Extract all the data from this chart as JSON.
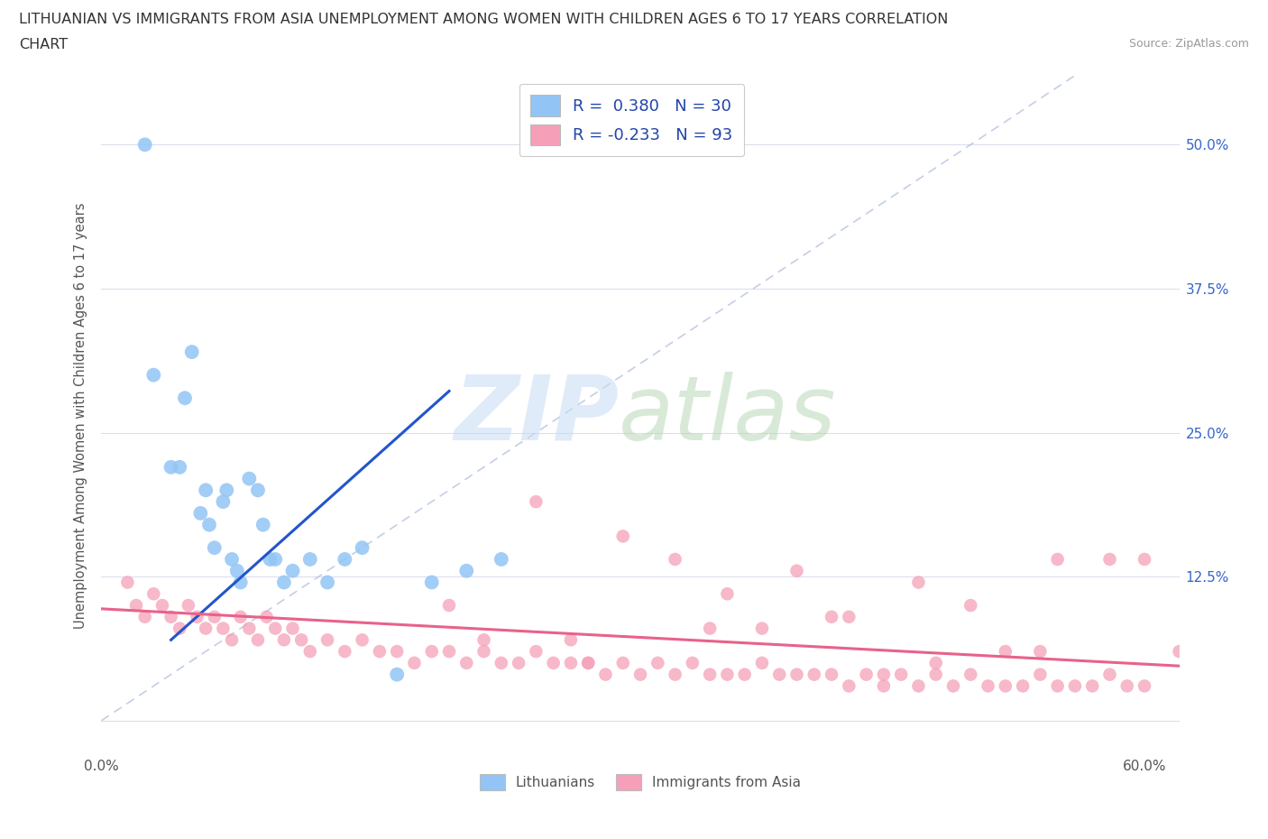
{
  "title_line1": "LITHUANIAN VS IMMIGRANTS FROM ASIA UNEMPLOYMENT AMONG WOMEN WITH CHILDREN AGES 6 TO 17 YEARS CORRELATION",
  "title_line2": "CHART",
  "source": "Source: ZipAtlas.com",
  "ylabel": "Unemployment Among Women with Children Ages 6 to 17 years",
  "xlim": [
    0.0,
    0.62
  ],
  "ylim": [
    -0.03,
    0.56
  ],
  "xtick_pos": [
    0.0,
    0.1,
    0.2,
    0.3,
    0.4,
    0.5,
    0.6
  ],
  "xticklabels": [
    "0.0%",
    "",
    "",
    "",
    "",
    "",
    "60.0%"
  ],
  "ytick_positions": [
    0.0,
    0.125,
    0.25,
    0.375,
    0.5
  ],
  "yticklabels_right": [
    "",
    "12.5%",
    "25.0%",
    "37.5%",
    "50.0%"
  ],
  "R_blue": 0.38,
  "N_blue": 30,
  "R_pink": -0.233,
  "N_pink": 93,
  "blue_color": "#92C5F5",
  "pink_color": "#F5A0B8",
  "blue_line_color": "#2255CC",
  "pink_line_color": "#E8628A",
  "grid_color": "#DDDDEE",
  "blue_x": [
    0.025,
    0.03,
    0.04,
    0.045,
    0.048,
    0.052,
    0.057,
    0.06,
    0.062,
    0.065,
    0.07,
    0.072,
    0.075,
    0.078,
    0.08,
    0.085,
    0.09,
    0.093,
    0.097,
    0.1,
    0.105,
    0.11,
    0.12,
    0.13,
    0.14,
    0.15,
    0.17,
    0.19,
    0.21,
    0.23
  ],
  "blue_y": [
    0.5,
    0.3,
    0.22,
    0.22,
    0.28,
    0.32,
    0.18,
    0.2,
    0.17,
    0.15,
    0.19,
    0.2,
    0.14,
    0.13,
    0.12,
    0.21,
    0.2,
    0.17,
    0.14,
    0.14,
    0.12,
    0.13,
    0.14,
    0.12,
    0.14,
    0.15,
    0.04,
    0.12,
    0.13,
    0.14
  ],
  "pink_x": [
    0.015,
    0.02,
    0.025,
    0.03,
    0.035,
    0.04,
    0.045,
    0.05,
    0.055,
    0.06,
    0.065,
    0.07,
    0.075,
    0.08,
    0.085,
    0.09,
    0.095,
    0.1,
    0.105,
    0.11,
    0.115,
    0.12,
    0.13,
    0.14,
    0.15,
    0.16,
    0.17,
    0.18,
    0.19,
    0.2,
    0.21,
    0.22,
    0.23,
    0.24,
    0.25,
    0.26,
    0.27,
    0.28,
    0.29,
    0.3,
    0.31,
    0.32,
    0.33,
    0.34,
    0.35,
    0.36,
    0.37,
    0.38,
    0.39,
    0.4,
    0.41,
    0.42,
    0.43,
    0.44,
    0.45,
    0.46,
    0.47,
    0.48,
    0.49,
    0.5,
    0.51,
    0.52,
    0.53,
    0.54,
    0.55,
    0.56,
    0.57,
    0.58,
    0.59,
    0.6,
    0.25,
    0.3,
    0.33,
    0.36,
    0.4,
    0.43,
    0.47,
    0.5,
    0.55,
    0.58,
    0.2,
    0.27,
    0.35,
    0.42,
    0.48,
    0.54,
    0.6,
    0.22,
    0.38,
    0.52,
    0.28,
    0.45,
    0.62
  ],
  "pink_y": [
    0.12,
    0.1,
    0.09,
    0.11,
    0.1,
    0.09,
    0.08,
    0.1,
    0.09,
    0.08,
    0.09,
    0.08,
    0.07,
    0.09,
    0.08,
    0.07,
    0.09,
    0.08,
    0.07,
    0.08,
    0.07,
    0.06,
    0.07,
    0.06,
    0.07,
    0.06,
    0.06,
    0.05,
    0.06,
    0.06,
    0.05,
    0.06,
    0.05,
    0.05,
    0.06,
    0.05,
    0.05,
    0.05,
    0.04,
    0.05,
    0.04,
    0.05,
    0.04,
    0.05,
    0.04,
    0.04,
    0.04,
    0.05,
    0.04,
    0.04,
    0.04,
    0.04,
    0.03,
    0.04,
    0.03,
    0.04,
    0.03,
    0.04,
    0.03,
    0.04,
    0.03,
    0.03,
    0.03,
    0.04,
    0.03,
    0.03,
    0.03,
    0.04,
    0.03,
    0.03,
    0.19,
    0.16,
    0.14,
    0.11,
    0.13,
    0.09,
    0.12,
    0.1,
    0.14,
    0.14,
    0.1,
    0.07,
    0.08,
    0.09,
    0.05,
    0.06,
    0.14,
    0.07,
    0.08,
    0.06,
    0.05,
    0.04,
    0.06
  ]
}
